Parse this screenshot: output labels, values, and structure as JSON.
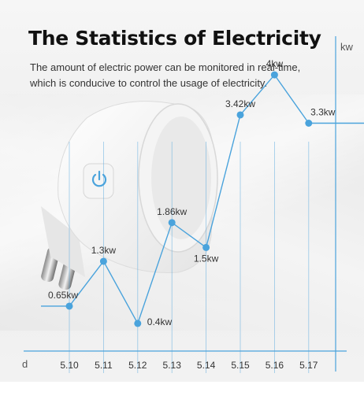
{
  "heading": {
    "title": "The Statistics of Electricity",
    "subtitle_line1": "The amount of electric power can be monitored in real-time,",
    "subtitle_line2": "which is conducive to control the usage of electricity."
  },
  "colors": {
    "accent": "#4aa3dc",
    "title": "#111111",
    "text": "#333333"
  },
  "chart_data": {
    "type": "line",
    "xlabel": "d",
    "ylabel": "kw",
    "categories": [
      "5.10",
      "5.11",
      "5.12",
      "5.13",
      "5.14",
      "5.15",
      "5.16",
      "5.17"
    ],
    "values": [
      0.65,
      1.3,
      0.4,
      1.86,
      1.5,
      3.42,
      4,
      3.3
    ],
    "labels": [
      "0.65kw",
      "1.3kw",
      "0.4kw",
      "1.86kw",
      "1.5kw",
      "3.42kw",
      "4kw",
      "3.3kw"
    ],
    "ylim": [
      0,
      4.4
    ],
    "grid": true
  },
  "product": {
    "icon": "power-icon"
  }
}
